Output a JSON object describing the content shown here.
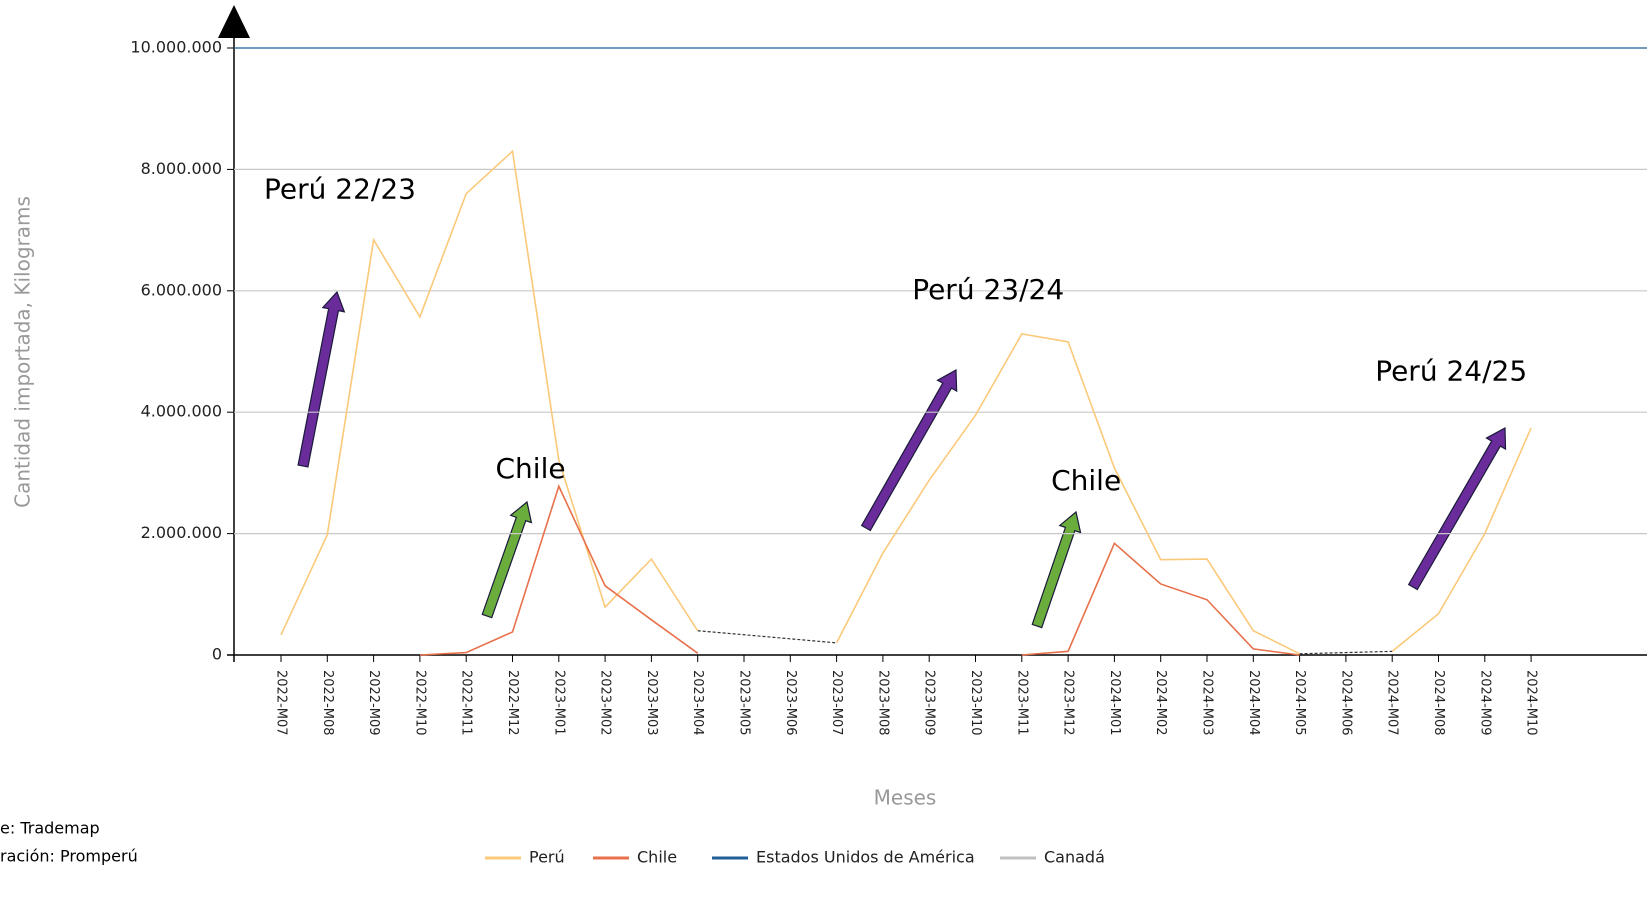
{
  "chart_data": {
    "type": "line",
    "y_label": "Cantidad importada, Kilograms",
    "x_label": "Meses",
    "categories": [
      "2022-M07",
      "2022-M08",
      "2022-M09",
      "2022-M10",
      "2022-M11",
      "2022-M12",
      "2023-M01",
      "2023-M02",
      "2023-M03",
      "2023-M04",
      "2023-M05",
      "2023-M06",
      "2023-M07",
      "2023-M08",
      "2023-M09",
      "2023-M10",
      "2023-M11",
      "2023-M12",
      "2024-M01",
      "2024-M02",
      "2024-M03",
      "2024-M04",
      "2024-M05",
      "2024-M06",
      "2024-M07",
      "2024-M08",
      "2024-M09",
      "2024-M10"
    ],
    "series": [
      {
        "name": "Perú",
        "color": "#fbc97a",
        "values": [
          330000,
          1980000,
          6840000,
          5570000,
          7600000,
          8300000,
          3210000,
          790000,
          1580000,
          400000,
          null,
          null,
          200000,
          1680000,
          2880000,
          3950000,
          5290000,
          5160000,
          3080000,
          1570000,
          1580000,
          400000,
          20000,
          null,
          60000,
          680000,
          2000000,
          3740000
        ]
      },
      {
        "name": "Chile",
        "color": "#e8704a",
        "values": [
          null,
          null,
          null,
          0,
          40000,
          380000,
          2780000,
          1140000,
          580000,
          30000,
          null,
          null,
          null,
          null,
          null,
          null,
          0,
          60000,
          1840000,
          1170000,
          910000,
          100000,
          0,
          null,
          null,
          null,
          null,
          null
        ]
      },
      {
        "name": "Estados Unidos de América",
        "color": "#1f5f99",
        "values": [
          null,
          null,
          null,
          null,
          null,
          null,
          null,
          null,
          null,
          null,
          null,
          null,
          null,
          null,
          null,
          null,
          null,
          null,
          null,
          null,
          null,
          null,
          null,
          null,
          null,
          null,
          null,
          null
        ]
      },
      {
        "name": "Canadá",
        "color": "#c0c0c0",
        "values": [
          null,
          null,
          null,
          null,
          null,
          null,
          null,
          null,
          null,
          null,
          null,
          null,
          null,
          null,
          null,
          null,
          null,
          null,
          null,
          null,
          null,
          null,
          null,
          null,
          null,
          null,
          null,
          null
        ]
      }
    ],
    "ylim": [
      0,
      10000000
    ],
    "yticks": [
      0,
      {
        "value": 2000000,
        "label": "2.000.000"
      },
      {
        "value": 4000000,
        "label": "4.000.000"
      },
      {
        "value": 6000000,
        "label": "6.000.000"
      },
      {
        "value": 8000000,
        "label": "8.000.000"
      },
      {
        "value": 10000000,
        "label": "10.000.000"
      }
    ],
    "grid": true,
    "annotations": [
      {
        "text": "Perú 22/23",
        "category": 0,
        "value": 7650000
      },
      {
        "text": "Chile",
        "category": 5,
        "value": 3050000
      },
      {
        "text": "Perú 23/24",
        "category": 14,
        "value": 6000000
      },
      {
        "text": "Chile",
        "category": 17,
        "value": 2850000
      },
      {
        "text": "Perú 24/25",
        "category": 24,
        "value": 4650000
      }
    ],
    "footnotes": [
      "e: Trademap",
      "ración: Promperú"
    ]
  }
}
